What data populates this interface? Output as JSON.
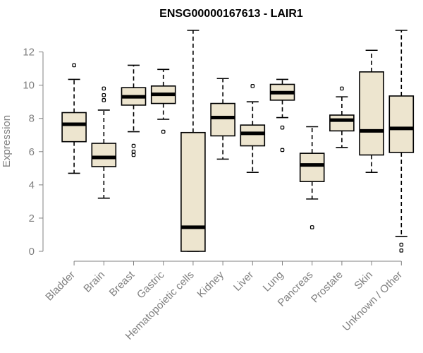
{
  "chart_data": {
    "type": "boxplot",
    "title": "ENSG00000167613 - LAIR1",
    "xlabel": "",
    "ylabel": "Expression",
    "ylim": [
      0,
      13.3
    ],
    "yticks": [
      0,
      2,
      4,
      6,
      8,
      10,
      12
    ],
    "colors": {
      "box_fill": "#ede5cf",
      "median": "#000000",
      "axis": "#808080",
      "title": "#000000"
    },
    "categories": [
      "Bladder",
      "Brain",
      "Breast",
      "Gastric",
      "Hematopoietic cells",
      "Kidney",
      "Liver",
      "Lung",
      "Pancreas",
      "Prostate",
      "Skin",
      "Unknown / Other"
    ],
    "boxes": [
      {
        "name": "Bladder",
        "whisker_low": 4.7,
        "q1": 6.6,
        "median": 7.65,
        "q3": 8.35,
        "whisker_high": 10.35,
        "outliers": [
          11.2
        ]
      },
      {
        "name": "Brain",
        "whisker_low": 3.2,
        "q1": 5.1,
        "median": 5.65,
        "q3": 6.5,
        "whisker_high": 8.5,
        "outliers": [
          9.1,
          9.4,
          9.8
        ]
      },
      {
        "name": "Breast",
        "whisker_low": 7.2,
        "q1": 8.8,
        "median": 9.3,
        "q3": 9.85,
        "whisker_high": 11.2,
        "outliers": [
          5.8,
          6.0,
          6.35
        ]
      },
      {
        "name": "Gastric",
        "whisker_low": 7.95,
        "q1": 8.9,
        "median": 9.45,
        "q3": 9.95,
        "whisker_high": 10.95,
        "outliers": [
          7.2
        ]
      },
      {
        "name": "Hematopoietic cells",
        "whisker_low": 0.0,
        "q1": 0.0,
        "median": 1.45,
        "q3": 7.15,
        "whisker_high": 13.3,
        "outliers": []
      },
      {
        "name": "Kidney",
        "whisker_low": 5.55,
        "q1": 6.95,
        "median": 8.05,
        "q3": 8.9,
        "whisker_high": 10.4,
        "outliers": []
      },
      {
        "name": "Liver",
        "whisker_low": 4.75,
        "q1": 6.35,
        "median": 7.1,
        "q3": 7.6,
        "whisker_high": 9.0,
        "outliers": [
          9.95
        ]
      },
      {
        "name": "Lung",
        "whisker_low": 8.05,
        "q1": 9.1,
        "median": 9.55,
        "q3": 10.05,
        "whisker_high": 10.35,
        "outliers": [
          7.45,
          6.1
        ]
      },
      {
        "name": "Pancreas",
        "whisker_low": 3.15,
        "q1": 4.2,
        "median": 5.2,
        "q3": 5.9,
        "whisker_high": 7.5,
        "outliers": [
          1.45
        ]
      },
      {
        "name": "Prostate",
        "whisker_low": 6.25,
        "q1": 7.25,
        "median": 7.9,
        "q3": 8.2,
        "whisker_high": 9.3,
        "outliers": [
          9.8
        ]
      },
      {
        "name": "Skin",
        "whisker_low": 4.75,
        "q1": 5.8,
        "median": 7.25,
        "q3": 10.8,
        "whisker_high": 12.1,
        "outliers": []
      },
      {
        "name": "Unknown / Other",
        "whisker_low": 0.9,
        "q1": 5.95,
        "median": 7.4,
        "q3": 9.35,
        "whisker_high": 13.3,
        "outliers": [
          0.4,
          0.05
        ]
      }
    ]
  }
}
